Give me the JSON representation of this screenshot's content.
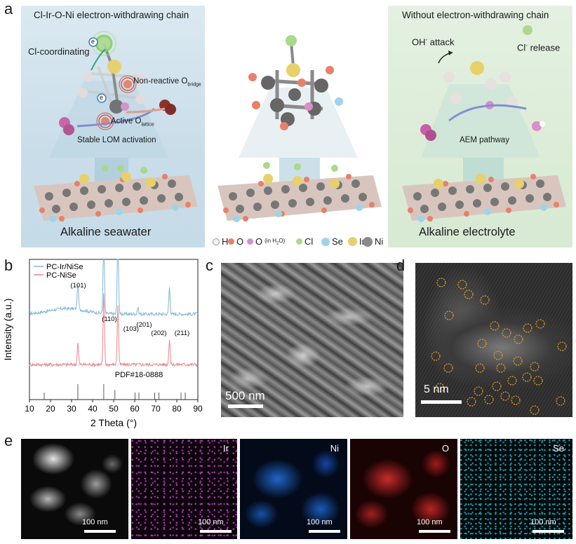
{
  "panel_a": {
    "letter": "a",
    "left_title": "Cl-Ir-O-Ni electron-withdrawing chain",
    "left_caption": "Alkaline seawater",
    "left_labels": {
      "cl_coord": "Cl-coordinating",
      "e1": "e",
      "e2": "e",
      "nonreactive": "Non-reactive O",
      "nonreactive_sub": "bridge",
      "active": "Active O",
      "active_sub": "lattice",
      "stable": "Stable LOM activation"
    },
    "right_title": "Without electron-withdrawing chain",
    "right_caption": "Alkaline electrolyte",
    "right_labels": {
      "oh_attack": "OH",
      "oh_sup": "-",
      "oh_rest": " attack",
      "cl_release": "Cl",
      "cl_sup": "-",
      "cl_rest": " release",
      "aem": "AEM pathway"
    },
    "legend": [
      {
        "label": "H",
        "color": "#f4f1ec",
        "ring": "#999999"
      },
      {
        "label": "O",
        "color": "#e8806a"
      },
      {
        "label": "O",
        "sub": "(in H",
        "sub2": "2",
        "sub3": "O)",
        "color": "#d98fc8"
      },
      {
        "label": "Cl",
        "color": "#a9d98a"
      },
      {
        "label": "Se",
        "color": "#9fd3ea"
      },
      {
        "label": "Ir",
        "color": "#e8d06a"
      },
      {
        "label": "Ni",
        "color": "#8a8a8a"
      }
    ]
  },
  "panel_b": {
    "letter": "b",
    "legend": [
      {
        "name": "PC-Ir/NiSe",
        "color": "#7fb7d8"
      },
      {
        "name": "PC-NiSe",
        "color": "#e9868a"
      }
    ],
    "peak_labels": [
      "(101)",
      "(110)",
      "(103)",
      "(201)",
      "(202)",
      "(211)"
    ],
    "pdf_label": "PDF#18-0888",
    "ylabel": "Intensity (a.u.)",
    "xlabel": "2 Theta (°)",
    "xticks": [
      "10",
      "20",
      "30",
      "40",
      "50",
      "60",
      "70",
      "80",
      "90"
    ]
  },
  "chart_data": {
    "type": "line",
    "title": "",
    "xlabel": "2 Theta (°)",
    "ylabel": "Intensity (a.u.)",
    "xlim": [
      10,
      90
    ],
    "series": [
      {
        "name": "PC-Ir/NiSe",
        "peaks": [
          [
            33.0,
            1.0
          ],
          [
            45.3,
            3.0
          ],
          [
            52.0,
            3.0
          ],
          [
            61.5,
            0.25
          ],
          [
            76.5,
            1.0
          ]
        ]
      },
      {
        "name": "PC-NiSe",
        "peaks": [
          [
            33.0,
            0.8
          ],
          [
            45.3,
            2.7
          ],
          [
            52.0,
            2.2
          ],
          [
            76.5,
            0.95
          ]
        ]
      }
    ],
    "reference_lines": [
      17.0,
      33.0,
      45.3,
      50.6,
      60.2,
      62.0,
      69.5,
      71.5,
      82.0,
      84.0
    ]
  },
  "panel_c": {
    "letter": "c",
    "scale": "500 nm"
  },
  "panel_d": {
    "letter": "d",
    "scale": "5 nm"
  },
  "panel_e": {
    "letter": "e",
    "maps": [
      {
        "label": "",
        "scale": "100 nm"
      },
      {
        "label": "Ir",
        "scale": "100 nm"
      },
      {
        "label": "Ni",
        "scale": "100 nm"
      },
      {
        "label": "O",
        "scale": "100 nm"
      },
      {
        "label": "Se",
        "scale": "100 nm"
      }
    ]
  }
}
